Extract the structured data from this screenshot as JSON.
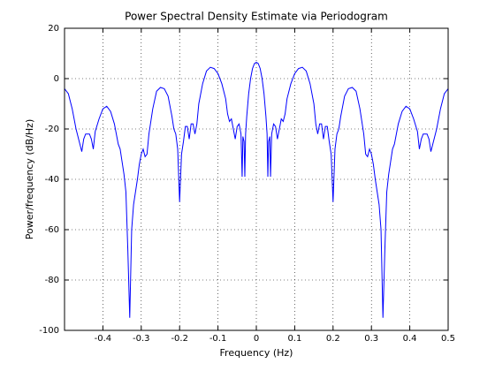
{
  "chart_data": {
    "type": "line",
    "title": "Power Spectral Density Estimate via Periodogram",
    "xlabel": "Frequency (Hz)",
    "ylabel": "Power/frequency (dB/Hz)",
    "color": "#0000ff",
    "grid": true,
    "xlim": [
      -0.5,
      0.5
    ],
    "xticks": [
      -0.4,
      -0.3,
      -0.2,
      -0.1,
      0,
      0.1,
      0.2,
      0.3,
      0.4,
      0.5
    ],
    "ylim": [
      -100,
      20
    ],
    "yticks": [
      -100,
      -80,
      -60,
      -40,
      -20,
      0,
      20
    ],
    "x": [
      -0.5,
      -0.49,
      -0.48,
      -0.47,
      -0.46,
      -0.455,
      -0.45,
      -0.445,
      -0.44,
      -0.435,
      -0.43,
      -0.425,
      -0.42,
      -0.41,
      -0.4,
      -0.39,
      -0.38,
      -0.37,
      -0.36,
      -0.355,
      -0.35,
      -0.345,
      -0.34,
      -0.335,
      -0.33,
      -0.325,
      -0.32,
      -0.31,
      -0.305,
      -0.3,
      -0.295,
      -0.29,
      -0.285,
      -0.28,
      -0.27,
      -0.26,
      -0.25,
      -0.24,
      -0.23,
      -0.22,
      -0.215,
      -0.21,
      -0.205,
      -0.2,
      -0.195,
      -0.19,
      -0.185,
      -0.18,
      -0.175,
      -0.17,
      -0.165,
      -0.16,
      -0.155,
      -0.15,
      -0.14,
      -0.13,
      -0.12,
      -0.11,
      -0.1,
      -0.09,
      -0.08,
      -0.075,
      -0.07,
      -0.065,
      -0.06,
      -0.055,
      -0.05,
      -0.045,
      -0.04,
      -0.037,
      -0.035,
      -0.032,
      -0.03,
      -0.028,
      -0.025,
      -0.02,
      -0.015,
      -0.01,
      -0.005,
      0,
      0.005,
      0.01,
      0.015,
      0.02,
      0.025,
      0.028,
      0.03,
      0.032,
      0.035,
      0.037,
      0.04,
      0.045,
      0.05,
      0.055,
      0.06,
      0.065,
      0.07,
      0.075,
      0.08,
      0.09,
      0.1,
      0.11,
      0.12,
      0.13,
      0.14,
      0.15,
      0.155,
      0.16,
      0.165,
      0.17,
      0.175,
      0.18,
      0.185,
      0.19,
      0.195,
      0.2,
      0.205,
      0.21,
      0.215,
      0.22,
      0.23,
      0.24,
      0.25,
      0.26,
      0.27,
      0.28,
      0.285,
      0.29,
      0.295,
      0.3,
      0.305,
      0.31,
      0.32,
      0.325,
      0.33,
      0.335,
      0.34,
      0.345,
      0.35,
      0.355,
      0.36,
      0.37,
      0.38,
      0.39,
      0.4,
      0.41,
      0.42,
      0.425,
      0.43,
      0.435,
      0.44,
      0.445,
      0.45,
      0.455,
      0.46,
      0.47,
      0.48,
      0.49,
      0.5
    ],
    "values": [
      -4,
      -6,
      -12,
      -20,
      -26,
      -29,
      -24,
      -22,
      -22,
      -22,
      -24,
      -28,
      -21,
      -16,
      -12,
      -11,
      -13,
      -18,
      -26,
      -28,
      -33,
      -38,
      -45,
      -68,
      -95,
      -60,
      -50,
      -40,
      -34,
      -30,
      -28,
      -31,
      -30,
      -22,
      -12,
      -5,
      -3.5,
      -4,
      -7,
      -15,
      -20,
      -22,
      -28,
      -49,
      -30,
      -25,
      -19,
      -19,
      -24,
      -18,
      -18,
      -22,
      -18,
      -10,
      -2,
      3,
      4.5,
      4,
      2,
      -2,
      -8,
      -14,
      -17,
      -16,
      -20,
      -24,
      -19,
      -18,
      -22,
      -39,
      -23,
      -25,
      -39,
      -22,
      -15,
      -6,
      0,
      4,
      6,
      6.5,
      6,
      4,
      0,
      -6,
      -15,
      -22,
      -39,
      -25,
      -23,
      -39,
      -22,
      -18,
      -19,
      -24,
      -20,
      -16,
      -17,
      -14,
      -8,
      -2,
      2,
      4,
      4.5,
      3,
      -2,
      -10,
      -18,
      -22,
      -18,
      -18,
      -24,
      -19,
      -19,
      -25,
      -30,
      -49,
      -28,
      -22,
      -20,
      -15,
      -7,
      -4,
      -3.5,
      -5,
      -12,
      -22,
      -30,
      -31,
      -28,
      -30,
      -34,
      -40,
      -50,
      -60,
      -95,
      -68,
      -45,
      -38,
      -33,
      -28,
      -26,
      -18,
      -13,
      -11,
      -12,
      -16,
      -21,
      -28,
      -24,
      -22,
      -22,
      -22,
      -24,
      -29,
      -26,
      -20,
      -12,
      -6,
      -4
    ]
  }
}
